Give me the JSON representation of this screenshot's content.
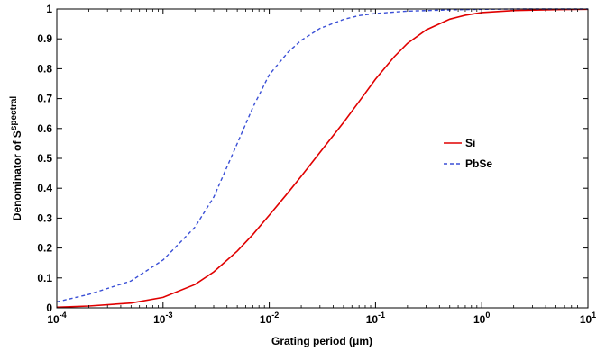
{
  "chart_data": {
    "type": "line",
    "xscale": "log",
    "xlim": [
      0.0001,
      10
    ],
    "ylim": [
      0,
      1
    ],
    "xlabel": {
      "pre": "Grating period (",
      "mu": "μ",
      "post": "m)"
    },
    "ylabel": {
      "main": "Denominator of S",
      "sub": "spectral"
    },
    "x_ticks": [
      {
        "base": "10",
        "exp": "-4",
        "value": 0.0001
      },
      {
        "base": "10",
        "exp": "-3",
        "value": 0.001
      },
      {
        "base": "10",
        "exp": "-2",
        "value": 0.01
      },
      {
        "base": "10",
        "exp": "-1",
        "value": 0.1
      },
      {
        "base": "10",
        "exp": "0",
        "value": 1
      },
      {
        "base": "10",
        "exp": "1",
        "value": 10
      }
    ],
    "y_ticks": [
      "0",
      "0.1",
      "0.2",
      "0.3",
      "0.4",
      "0.5",
      "0.6",
      "0.7",
      "0.8",
      "0.9",
      "1"
    ],
    "grid": false,
    "legend_position": "center-right",
    "series": [
      {
        "name": "Si",
        "color": "#e00000",
        "dash": "solid",
        "x": [
          0.0001,
          0.0002,
          0.0005,
          0.001,
          0.002,
          0.003,
          0.005,
          0.007,
          0.01,
          0.015,
          0.02,
          0.03,
          0.05,
          0.07,
          0.1,
          0.15,
          0.2,
          0.3,
          0.5,
          0.7,
          1,
          2,
          5,
          10
        ],
        "y": [
          0.002,
          0.006,
          0.016,
          0.035,
          0.078,
          0.12,
          0.19,
          0.245,
          0.31,
          0.385,
          0.44,
          0.52,
          0.62,
          0.69,
          0.765,
          0.84,
          0.885,
          0.93,
          0.966,
          0.979,
          0.988,
          0.995,
          0.998,
          0.999
        ]
      },
      {
        "name": "PbSe",
        "color": "#3a4fd6",
        "dash": "dashed",
        "x": [
          0.0001,
          0.0002,
          0.0005,
          0.001,
          0.002,
          0.003,
          0.005,
          0.007,
          0.01,
          0.015,
          0.02,
          0.03,
          0.05,
          0.07,
          0.1,
          0.2,
          0.5,
          1,
          2,
          10
        ],
        "y": [
          0.02,
          0.045,
          0.09,
          0.16,
          0.27,
          0.37,
          0.55,
          0.67,
          0.78,
          0.855,
          0.895,
          0.935,
          0.965,
          0.978,
          0.985,
          0.993,
          0.997,
          0.999,
          1.0,
          1.0
        ]
      }
    ]
  }
}
